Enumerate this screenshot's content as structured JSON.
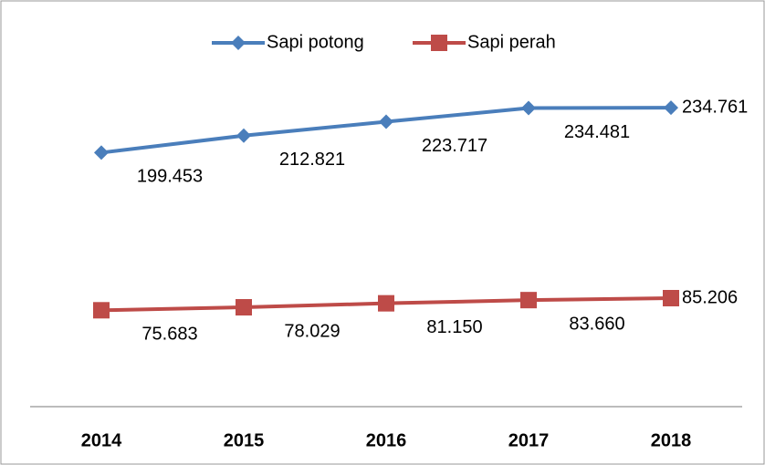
{
  "chart_data": {
    "type": "line",
    "categories": [
      "2014",
      "2015",
      "2016",
      "2017",
      "2018"
    ],
    "series": [
      {
        "name": "Sapi potong",
        "color": "#4a7ebb",
        "marker": "diamond",
        "values": [
          199.453,
          212.821,
          223.717,
          234.481,
          234.761
        ],
        "value_labels": [
          "199.453",
          "212.821",
          "223.717",
          "234.481",
          "234.761"
        ]
      },
      {
        "name": "Sapi perah",
        "color": "#be4b48",
        "marker": "square",
        "values": [
          75.683,
          78.029,
          81.15,
          83.66,
          85.206
        ],
        "value_labels": [
          "75.683",
          "78.029",
          "81.150",
          "83.660",
          "85.206"
        ]
      }
    ],
    "ylim": [
      0,
      300
    ],
    "legend": "top"
  }
}
